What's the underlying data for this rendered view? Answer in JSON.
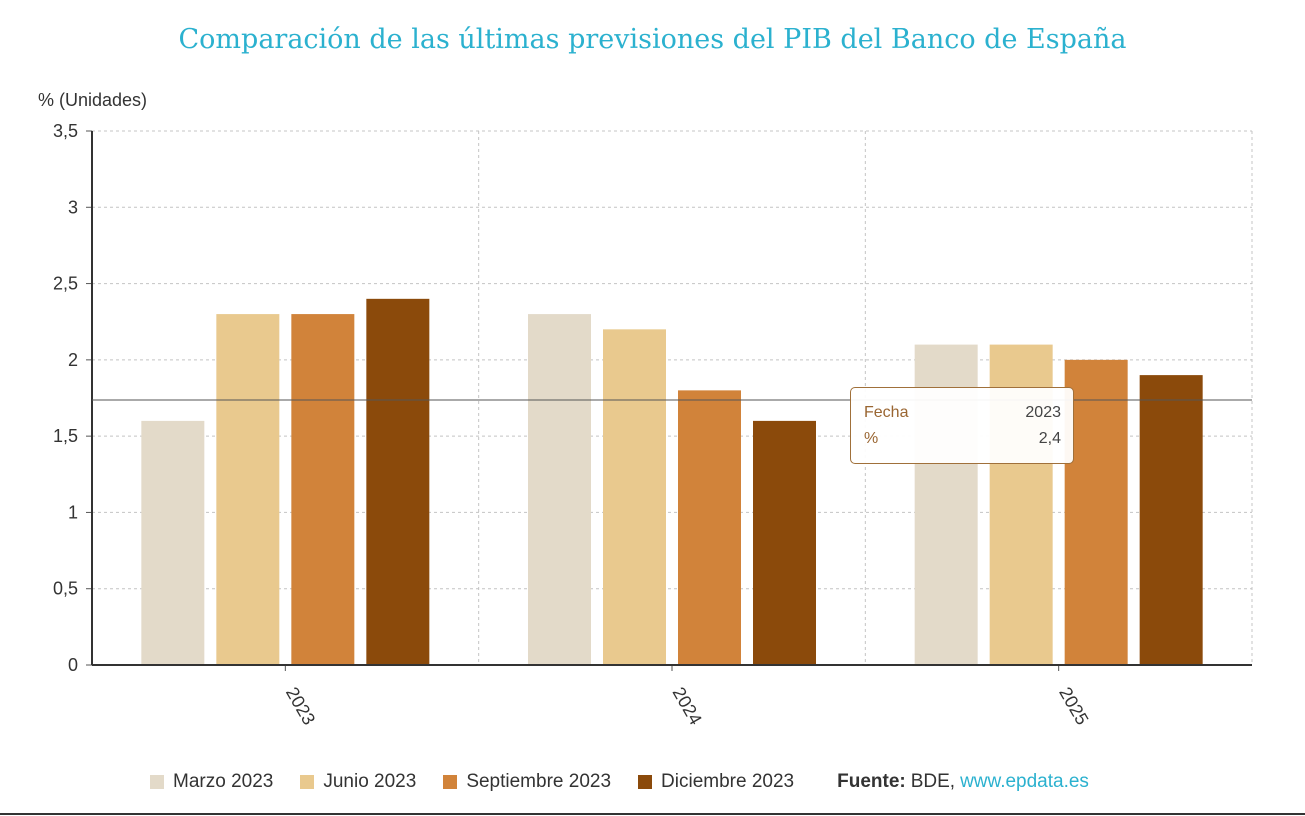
{
  "title": "Comparación de las últimas previsiones del PIB del Banco de España",
  "unit_label": "% (Unidades)",
  "chart_data": {
    "type": "bar",
    "categories": [
      "2023",
      "2024",
      "2025"
    ],
    "series": [
      {
        "name": "Marzo 2023",
        "color": "#e3dac9",
        "values": [
          1.6,
          2.3,
          2.1
        ]
      },
      {
        "name": "Junio 2023",
        "color": "#e9c98e",
        "values": [
          2.3,
          2.2,
          2.1
        ]
      },
      {
        "name": "Septiembre 2023",
        "color": "#d1833a",
        "values": [
          2.3,
          1.8,
          2.0
        ]
      },
      {
        "name": "Diciembre 2023",
        "color": "#8b4a0b",
        "values": [
          2.4,
          1.6,
          1.9
        ]
      }
    ],
    "ylim": [
      0,
      3.5
    ],
    "yticks": [
      "0",
      "0,5",
      "1",
      "1,5",
      "2",
      "2,5",
      "3",
      "3,5"
    ],
    "grid": true,
    "legend_position": "bottom"
  },
  "tooltip": {
    "row1_label": "Fecha",
    "row1_value": "2023",
    "row2_label": "%",
    "row2_value": "2,4"
  },
  "source": {
    "label": "Fuente:",
    "text": "BDE,",
    "link": "www.epdata.es"
  }
}
